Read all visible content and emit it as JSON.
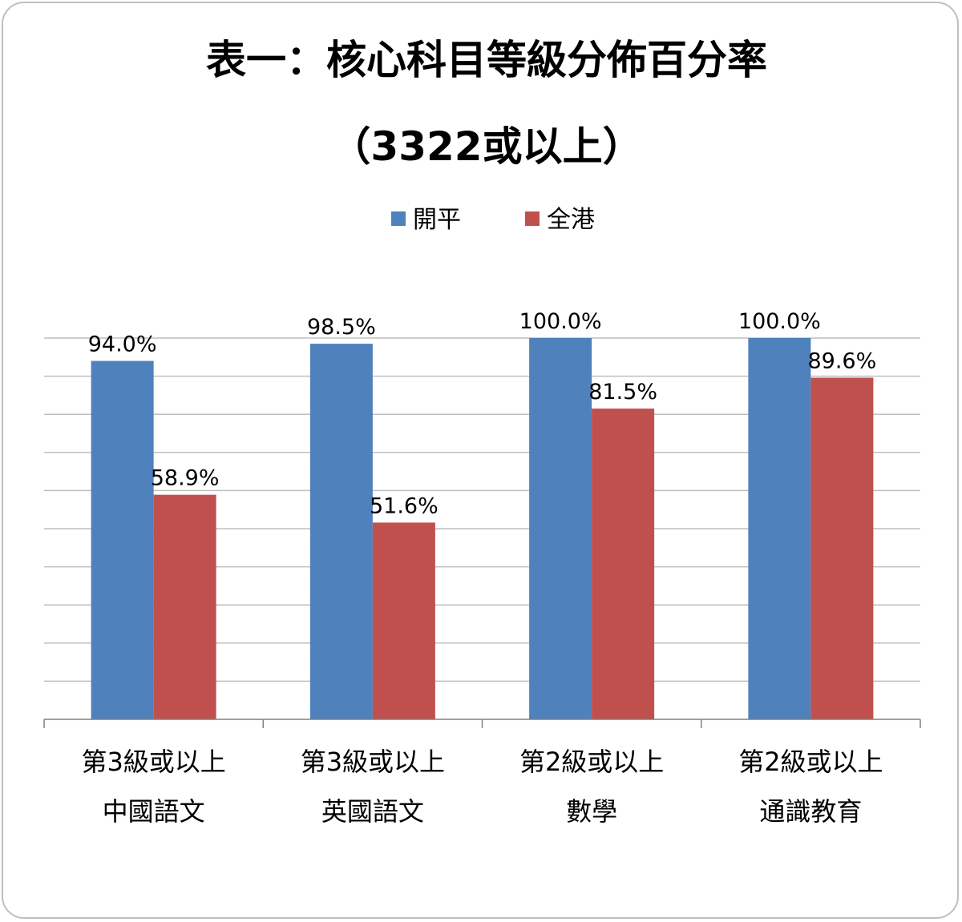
{
  "chart_data": {
    "type": "bar",
    "title": "表一：核心科目等級分佈百分率",
    "subtitle": "（3322或以上）",
    "categories": [
      [
        "第3級或以上",
        "中國語文"
      ],
      [
        "第3級或以上",
        "英國語文"
      ],
      [
        "第2級或以上",
        "數學"
      ],
      [
        "第2級或以上",
        "通識教育"
      ]
    ],
    "series": [
      {
        "name": "開平",
        "color": "#4f81bd",
        "values": [
          94.0,
          98.5,
          100.0,
          100.0
        ],
        "labels": [
          "94.0%",
          "98.5%",
          "100.0%",
          "100.0%"
        ]
      },
      {
        "name": "全港",
        "color": "#c0504d",
        "values": [
          58.9,
          51.6,
          81.5,
          89.6
        ],
        "labels": [
          "58.9%",
          "51.6%",
          "81.5%",
          "89.6%"
        ]
      }
    ],
    "ylim": [
      0,
      100
    ],
    "y_gridlines": 10,
    "grid": true,
    "legend": "top-center",
    "y_axis_labels_visible": false
  }
}
